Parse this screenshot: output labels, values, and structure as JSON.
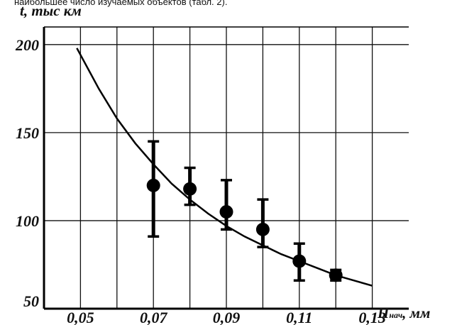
{
  "header_text": "наибольшее число изучаемых объектов (табл. 2).",
  "chart_data": {
    "type": "scatter",
    "title": "",
    "ylabel": "t, тыс км",
    "xlabel_main": "П",
    "xlabel_sub": "нач",
    "xlabel_unit": ", мм",
    "xlim": [
      0.04,
      0.14
    ],
    "ylim": [
      50,
      210
    ],
    "x_ticks": [
      "0,05",
      "0,07",
      "0,09",
      "0,11",
      "0,13"
    ],
    "x_tick_values": [
      0.05,
      0.07,
      0.09,
      0.11,
      0.13
    ],
    "y_ticks": [
      "50",
      "100",
      "150",
      "200"
    ],
    "y_tick_values": [
      50,
      100,
      150,
      200
    ],
    "grid": true,
    "series": [
      {
        "type": "errorbar",
        "x": [
          0.07,
          0.08,
          0.09,
          0.1,
          0.11,
          0.12
        ],
        "y": [
          120,
          118,
          105,
          95,
          77,
          69
        ],
        "y_low": [
          91,
          109,
          95,
          85,
          66,
          66
        ],
        "y_high": [
          145,
          130,
          123,
          112,
          87,
          72
        ]
      },
      {
        "type": "line",
        "x": [
          0.049,
          0.055,
          0.06,
          0.065,
          0.07,
          0.075,
          0.08,
          0.085,
          0.09,
          0.095,
          0.1,
          0.105,
          0.11,
          0.115,
          0.12,
          0.125,
          0.13
        ],
        "y": [
          198,
          175,
          158,
          144,
          132,
          121,
          112,
          104,
          97,
          91,
          86,
          81,
          77,
          73,
          69,
          66,
          63
        ]
      }
    ]
  }
}
